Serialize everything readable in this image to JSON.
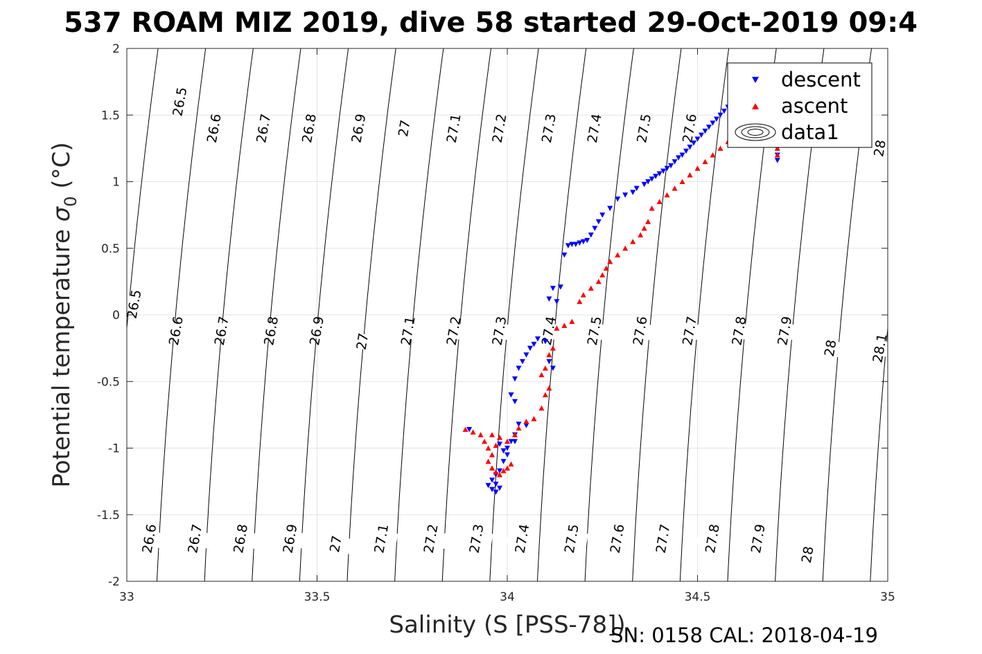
{
  "chart_data": {
    "type": "scatter",
    "title": "537 ROAM MIZ 2019, dive 58 started 29-Oct-2019 09:4",
    "xlabel": "Salinity (S [PSS-78])",
    "ylabel_main": "Potential temperature ",
    "ylabel_sigma": "σ",
    "ylabel_sub": "0",
    "ylabel_unit": " (°C)",
    "footer": "SN: 0158  CAL: 2018-04-19",
    "xlim": [
      33,
      35
    ],
    "ylim": [
      -2,
      2
    ],
    "x_ticks": [
      33,
      33.5,
      34,
      34.5,
      35
    ],
    "x_tick_labels": [
      "33",
      "33.5",
      "34",
      "34.5",
      "35"
    ],
    "y_ticks": [
      -2,
      -1.5,
      -1,
      -0.5,
      0,
      0.5,
      1,
      1.5,
      2
    ],
    "y_tick_labels": [
      "-2",
      "-1.5",
      "-1",
      "-0.5",
      "0",
      "0.5",
      "1",
      "1.5",
      "2"
    ],
    "grid": true,
    "legend_position": "top-right",
    "legend": [
      "descent",
      "ascent",
      "data1"
    ],
    "density_contours": [
      26.5,
      26.6,
      26.7,
      26.8,
      26.9,
      27,
      27.1,
      27.2,
      27.3,
      27.4,
      27.5,
      27.6,
      27.7,
      27.8,
      27.9,
      28,
      28.1
    ],
    "contour_labels_top": [
      {
        "text": "26.5",
        "x": 33.14,
        "y": 1.6
      },
      {
        "text": "26.6",
        "x": 33.23,
        "y": 1.4
      },
      {
        "text": "26.7",
        "x": 33.36,
        "y": 1.4
      },
      {
        "text": "26.8",
        "x": 33.48,
        "y": 1.4
      },
      {
        "text": "26.9",
        "x": 33.61,
        "y": 1.4
      },
      {
        "text": "27",
        "x": 33.73,
        "y": 1.4
      },
      {
        "text": "27.1",
        "x": 33.86,
        "y": 1.4
      },
      {
        "text": "27.2",
        "x": 33.98,
        "y": 1.4
      },
      {
        "text": "27.3",
        "x": 34.11,
        "y": 1.4
      },
      {
        "text": "27.4",
        "x": 34.23,
        "y": 1.4
      },
      {
        "text": "27.5",
        "x": 34.36,
        "y": 1.4
      },
      {
        "text": "27.6",
        "x": 34.48,
        "y": 1.4
      },
      {
        "text": "28",
        "x": 34.98,
        "y": 1.25
      }
    ],
    "contour_labels_mid": [
      {
        "text": "26.5",
        "x": 33.02,
        "y": 0.08
      },
      {
        "text": "26.6",
        "x": 33.13,
        "y": -0.12
      },
      {
        "text": "26.7",
        "x": 33.25,
        "y": -0.12
      },
      {
        "text": "26.8",
        "x": 33.38,
        "y": -0.12
      },
      {
        "text": "26.9",
        "x": 33.5,
        "y": -0.12
      },
      {
        "text": "27",
        "x": 33.62,
        "y": -0.2
      },
      {
        "text": "27.1",
        "x": 33.74,
        "y": -0.12
      },
      {
        "text": "27.2",
        "x": 33.86,
        "y": -0.12
      },
      {
        "text": "27.3",
        "x": 33.98,
        "y": -0.12
      },
      {
        "text": "27.4",
        "x": 34.11,
        "y": -0.12
      },
      {
        "text": "27.5",
        "x": 34.23,
        "y": -0.12
      },
      {
        "text": "27.6",
        "x": 34.35,
        "y": -0.12
      },
      {
        "text": "27.7",
        "x": 34.48,
        "y": -0.12
      },
      {
        "text": "27.8",
        "x": 34.61,
        "y": -0.12
      },
      {
        "text": "27.9",
        "x": 34.73,
        "y": -0.12
      },
      {
        "text": "28",
        "x": 34.85,
        "y": -0.25
      },
      {
        "text": "28.1",
        "x": 34.98,
        "y": -0.25
      }
    ],
    "contour_labels_bottom": [
      {
        "text": "26.6",
        "x": 33.06,
        "y": -1.68
      },
      {
        "text": "26.7",
        "x": 33.18,
        "y": -1.68
      },
      {
        "text": "26.8",
        "x": 33.3,
        "y": -1.68
      },
      {
        "text": "26.9",
        "x": 33.43,
        "y": -1.68
      },
      {
        "text": "27",
        "x": 33.55,
        "y": -1.72
      },
      {
        "text": "27.1",
        "x": 33.67,
        "y": -1.68
      },
      {
        "text": "27.2",
        "x": 33.8,
        "y": -1.68
      },
      {
        "text": "27.3",
        "x": 33.92,
        "y": -1.68
      },
      {
        "text": "27.4",
        "x": 34.04,
        "y": -1.68
      },
      {
        "text": "27.5",
        "x": 34.17,
        "y": -1.68
      },
      {
        "text": "27.6",
        "x": 34.29,
        "y": -1.68
      },
      {
        "text": "27.7",
        "x": 34.41,
        "y": -1.68
      },
      {
        "text": "27.8",
        "x": 34.54,
        "y": -1.68
      },
      {
        "text": "27.9",
        "x": 34.66,
        "y": -1.68
      },
      {
        "text": "28",
        "x": 34.79,
        "y": -1.8
      }
    ],
    "series": [
      {
        "name": "descent",
        "color": "#0000ff",
        "marker": "triangle-down",
        "x": [
          33.9,
          33.95,
          33.96,
          33.97,
          33.98,
          33.97,
          33.96,
          33.97,
          33.98,
          33.99,
          34.0,
          34.02,
          34.05,
          33.98,
          33.99,
          34.0,
          34.01,
          34.02,
          34.03,
          34.02,
          34.01,
          34.02,
          34.03,
          34.04,
          34.05,
          34.06,
          34.07,
          34.08,
          34.1,
          34.11,
          34.12,
          34.13,
          34.11,
          34.12,
          34.14,
          34.15,
          34.16,
          34.17,
          34.18,
          34.19,
          34.2,
          34.21,
          34.22,
          34.23,
          34.24,
          34.25,
          34.27,
          34.29,
          34.31,
          34.33,
          34.34,
          34.36,
          34.37,
          34.38,
          34.39,
          34.4,
          34.41,
          34.42,
          34.43,
          34.44,
          34.45,
          34.46,
          34.47,
          34.48,
          34.49,
          34.5,
          34.51,
          34.52,
          34.53,
          34.54,
          34.55,
          34.56,
          34.57,
          34.58,
          34.59,
          34.6,
          34.61,
          34.62,
          34.63,
          34.64,
          34.65,
          34.66,
          34.67,
          34.68,
          34.69,
          34.7,
          34.71,
          34.71,
          34.71,
          34.71
        ],
        "y": [
          -0.86,
          -1.28,
          -1.31,
          -1.33,
          -1.3,
          -1.27,
          -1.24,
          -1.2,
          -1.17,
          -1.1,
          -1.05,
          -0.95,
          -0.83,
          -0.97,
          -1.02,
          -1.0,
          -0.95,
          -0.9,
          -0.82,
          -0.65,
          -0.6,
          -0.48,
          -0.4,
          -0.35,
          -0.3,
          -0.25,
          -0.22,
          -0.18,
          -0.2,
          -0.35,
          -0.4,
          0.1,
          0.12,
          0.2,
          0.21,
          0.45,
          0.52,
          0.53,
          0.53,
          0.54,
          0.55,
          0.56,
          0.6,
          0.65,
          0.7,
          0.75,
          0.8,
          0.87,
          0.9,
          0.92,
          0.95,
          0.98,
          1.0,
          1.02,
          1.04,
          1.06,
          1.08,
          1.1,
          1.12,
          1.15,
          1.18,
          1.2,
          1.23,
          1.26,
          1.29,
          1.32,
          1.35,
          1.38,
          1.41,
          1.44,
          1.47,
          1.5,
          1.53,
          1.56,
          1.59,
          1.61,
          1.63,
          1.65,
          1.66,
          1.65,
          1.6,
          1.55,
          1.5,
          1.45,
          1.4,
          1.35,
          1.3,
          1.25,
          1.2,
          1.16
        ]
      },
      {
        "name": "ascent",
        "color": "#ff0000",
        "marker": "triangle-up",
        "x": [
          33.89,
          33.91,
          33.93,
          33.94,
          33.95,
          33.96,
          33.95,
          33.96,
          33.97,
          33.98,
          33.99,
          34.0,
          34.01,
          33.97,
          33.96,
          33.98,
          34.0,
          34.02,
          34.03,
          34.05,
          34.07,
          34.09,
          34.1,
          34.11,
          34.09,
          34.1,
          34.11,
          34.12,
          34.13,
          34.15,
          34.17,
          34.19,
          34.2,
          34.22,
          34.24,
          34.25,
          34.26,
          34.27,
          34.29,
          34.31,
          34.33,
          34.35,
          34.36,
          34.37,
          34.38,
          34.4,
          34.42,
          34.44,
          34.46,
          34.48,
          34.5,
          34.52,
          34.54,
          34.56,
          34.58,
          34.6,
          34.62,
          34.64,
          34.66,
          34.68,
          34.7,
          34.71,
          34.71,
          34.71
        ],
        "y": [
          -0.86,
          -0.88,
          -0.9,
          -0.95,
          -1.0,
          -1.05,
          -1.1,
          -1.15,
          -1.18,
          -1.2,
          -1.17,
          -1.15,
          -1.12,
          -0.98,
          -0.9,
          -0.92,
          -0.95,
          -0.9,
          -0.85,
          -0.8,
          -0.78,
          -0.7,
          -0.6,
          -0.55,
          -0.45,
          -0.4,
          -0.3,
          -0.25,
          -0.1,
          -0.08,
          -0.05,
          0.1,
          0.15,
          0.2,
          0.25,
          0.3,
          0.35,
          0.4,
          0.45,
          0.5,
          0.55,
          0.6,
          0.65,
          0.7,
          0.8,
          0.85,
          0.9,
          0.95,
          1.0,
          1.05,
          1.1,
          1.15,
          1.2,
          1.25,
          1.3,
          1.35,
          1.4,
          1.45,
          1.5,
          1.55,
          1.4,
          1.3,
          1.25,
          1.2
        ]
      }
    ]
  }
}
